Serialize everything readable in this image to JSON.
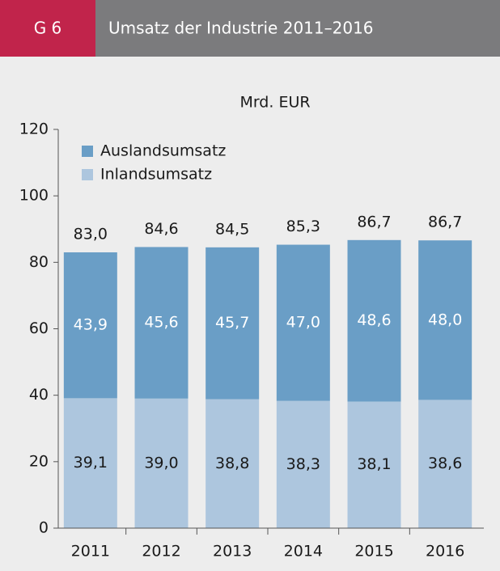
{
  "header": {
    "number": "G 6",
    "title": "Umsatz der Industrie 2011–2016"
  },
  "chart_data": {
    "type": "stacked_bar",
    "unit": "Mrd. EUR",
    "categories": [
      "2011",
      "2012",
      "2013",
      "2014",
      "2015",
      "2016"
    ],
    "series": [
      {
        "name": "Inlandsumsatz",
        "color": "#adc6de",
        "values": [
          39.1,
          39.0,
          38.8,
          38.3,
          38.1,
          38.6
        ],
        "value_labels": [
          "39,1",
          "39,0",
          "38,8",
          "38,3",
          "38,1",
          "38,6"
        ]
      },
      {
        "name": "Auslandsumsatz",
        "color": "#6a9ec6",
        "values": [
          43.9,
          45.6,
          45.7,
          47.0,
          48.6,
          48.0
        ],
        "value_labels": [
          "43,9",
          "45,6",
          "45,7",
          "47,0",
          "48,6",
          "48,0"
        ]
      }
    ],
    "totals": [
      83.0,
      84.6,
      84.5,
      85.3,
      86.7,
      86.7
    ],
    "total_labels": [
      "83,0",
      "84,6",
      "84,5",
      "85,3",
      "86,7",
      "86,7"
    ],
    "ylim": [
      0,
      120
    ],
    "yticks": [
      0,
      20,
      40,
      60,
      80,
      100,
      120
    ],
    "legend": "upper left"
  }
}
